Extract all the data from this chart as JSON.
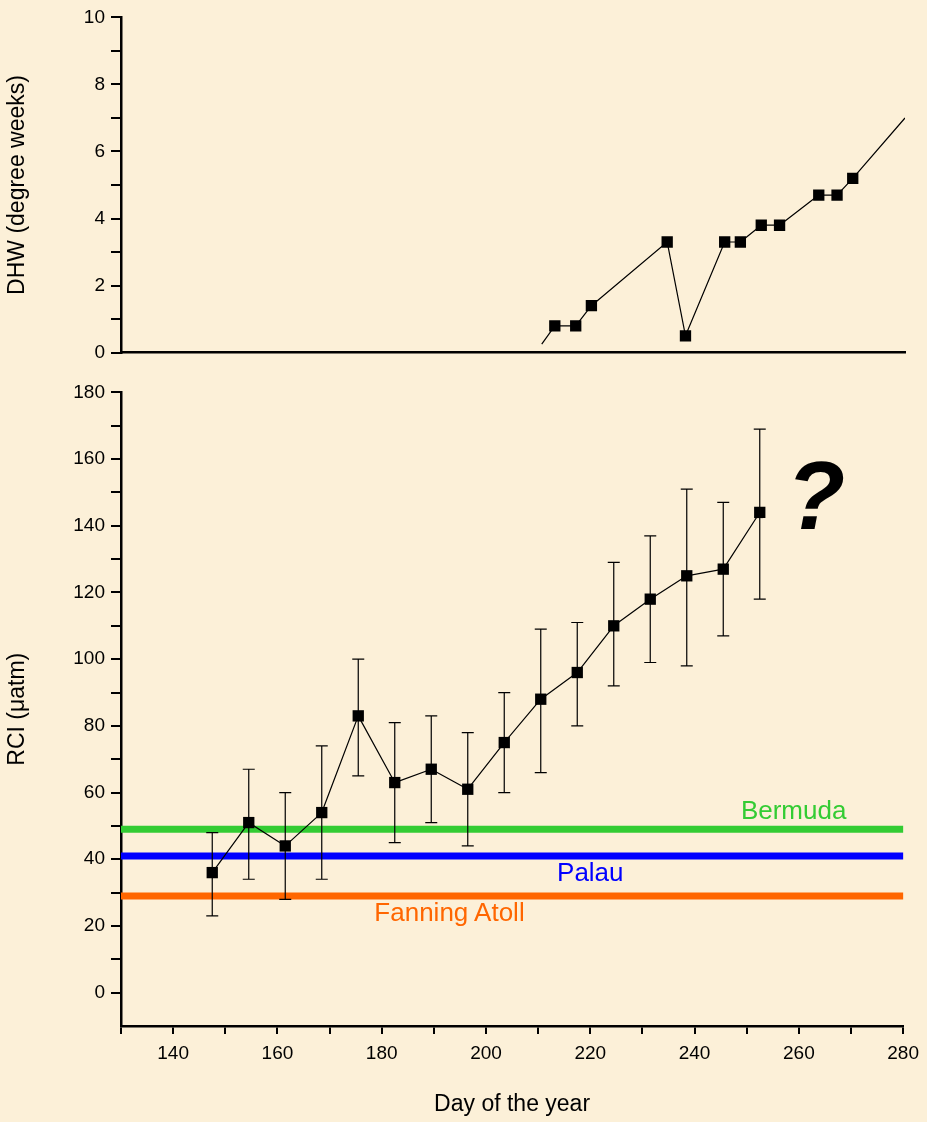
{
  "chart_data": [
    {
      "type": "line",
      "ylabel": "DHW (degree weeks)",
      "xlim": [
        130,
        280
      ],
      "ylim": [
        0,
        10
      ],
      "yticks": [
        0,
        {
          "value": 1,
          "label": null
        },
        2,
        {
          "value": 3,
          "label": null
        },
        4,
        {
          "value": 5,
          "label": null
        },
        6,
        {
          "value": 7,
          "label": null
        },
        8,
        {
          "value": 9,
          "label": null
        },
        10
      ],
      "tick_labels": "y",
      "grid": false,
      "series": [
        {
          "type": "line",
          "marker": "none",
          "color": "#000000",
          "x": [
            210.5,
            213,
            217,
            220,
            234.5,
            238,
            245.5,
            248.5,
            252.5,
            256,
            263.5,
            267,
            270,
            280
          ],
          "values": [
            0.25,
            0.8,
            0.8,
            1.4,
            3.3,
            0.5,
            3.3,
            3.3,
            3.8,
            3.8,
            4.7,
            4.7,
            5.2,
            7.0
          ]
        },
        {
          "type": "scatter",
          "marker": "square",
          "color": "#000000",
          "x": [
            213,
            217,
            220,
            234.5,
            238,
            245.5,
            248.5,
            252.5,
            256,
            263.5,
            267,
            270
          ],
          "values": [
            0.8,
            0.8,
            1.4,
            3.3,
            0.5,
            3.3,
            3.3,
            3.8,
            3.8,
            4.7,
            4.7,
            5.2
          ]
        }
      ]
    },
    {
      "type": "line",
      "xlabel": "Day of the year",
      "ylabel": "RCI (μatm)",
      "xlim": [
        130,
        280
      ],
      "ylim": [
        -10,
        180
      ],
      "xticks": [
        {
          "value": 130,
          "label": null
        },
        140,
        {
          "value": 150,
          "label": null
        },
        160,
        {
          "value": 170,
          "label": null
        },
        180,
        {
          "value": 190,
          "label": null
        },
        200,
        {
          "value": 210,
          "label": null
        },
        220,
        {
          "value": 230,
          "label": null
        },
        240,
        {
          "value": 250,
          "label": null
        },
        260,
        {
          "value": 270,
          "label": null
        },
        280
      ],
      "yticks": [
        0,
        {
          "value": 10,
          "label": null
        },
        20,
        {
          "value": 30,
          "label": null
        },
        40,
        {
          "value": 50,
          "label": null
        },
        60,
        {
          "value": 70,
          "label": null
        },
        80,
        {
          "value": 90,
          "label": null
        },
        100,
        {
          "value": 110,
          "label": null
        },
        120,
        {
          "value": 130,
          "label": null
        },
        140,
        {
          "value": 150,
          "label": null
        },
        160,
        {
          "value": 170,
          "label": null
        },
        180
      ],
      "grid": false,
      "marker": "square",
      "series": [
        {
          "color": "#000000",
          "x": [
            147.5,
            154.5,
            161.5,
            168.5,
            175.5,
            182.5,
            189.5,
            196.5,
            203.5,
            210.5,
            217.5,
            224.5,
            231.5,
            238.5,
            245.5,
            252.5
          ],
          "values": [
            36,
            51,
            44,
            54,
            83,
            63,
            67,
            61,
            75,
            88,
            96,
            110,
            118,
            125,
            127,
            144
          ],
          "errors": [
            [
              23,
              48
            ],
            [
              34,
              67
            ],
            [
              28,
              60
            ],
            [
              34,
              74
            ],
            [
              65,
              100
            ],
            [
              45,
              81
            ],
            [
              51,
              83
            ],
            [
              44,
              78
            ],
            [
              60,
              90
            ],
            [
              66,
              109
            ],
            [
              80,
              111
            ],
            [
              92,
              129
            ],
            [
              99,
              137
            ],
            [
              98,
              151
            ],
            [
              107,
              147
            ],
            [
              118,
              169
            ]
          ]
        }
      ],
      "ref_lines": [
        {
          "axis": "y",
          "value": 49,
          "color": "#33cc33",
          "label": "Bermuda"
        },
        {
          "axis": "y",
          "value": 41,
          "color": "#0000ff",
          "label": "Palau"
        },
        {
          "axis": "y",
          "value": 29,
          "color": "#ff6600",
          "label": "Fanning Atoll"
        }
      ],
      "annotations": [
        "?"
      ]
    }
  ]
}
